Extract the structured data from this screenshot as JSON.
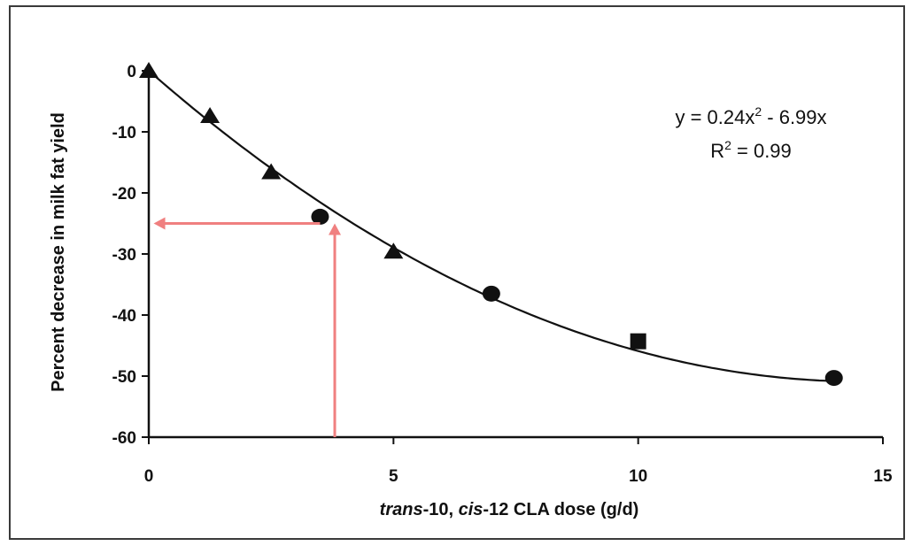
{
  "chart_data": {
    "type": "scatter",
    "ylabel": "Percent decrease in milk fat yield",
    "xlabel_parts": [
      "trans",
      "-10, ",
      "cis",
      "-12 CLA dose (g/d)"
    ],
    "xlim": [
      0,
      15
    ],
    "ylim": [
      -60,
      0
    ],
    "xticks": [
      "0",
      "5",
      "10",
      "15"
    ],
    "yticks": [
      "0",
      "-10",
      "-20",
      "-30",
      "-40",
      "-50",
      "-60"
    ],
    "equation": {
      "line1_a": "y = 0.24x",
      "line1_sup": "2",
      "line1_b": " - 6.99x",
      "line2_a": "R",
      "line2_sup": "2",
      "line2_b": " = 0.99"
    },
    "fit": {
      "a": 0.24,
      "b": -6.99,
      "c": 0
    },
    "points": [
      {
        "x": 0,
        "y": 0,
        "marker": "triangle"
      },
      {
        "x": 1.25,
        "y": -7.4,
        "marker": "triangle"
      },
      {
        "x": 2.5,
        "y": -16.6,
        "marker": "triangle"
      },
      {
        "x": 3.5,
        "y": -23.9,
        "marker": "circle"
      },
      {
        "x": 5,
        "y": -29.6,
        "marker": "triangle"
      },
      {
        "x": 7,
        "y": -36.5,
        "marker": "circle"
      },
      {
        "x": 10,
        "y": -44.3,
        "marker": "square"
      },
      {
        "x": 14,
        "y": -50.3,
        "marker": "circle"
      }
    ],
    "annotation_arrows": {
      "color": "#f08080",
      "vertical": {
        "x": 3.8,
        "y_from": -60,
        "y_to": -25
      },
      "horizontal": {
        "y": -25,
        "x_from": 3.5,
        "x_to": 0.1
      }
    },
    "grid": false
  }
}
